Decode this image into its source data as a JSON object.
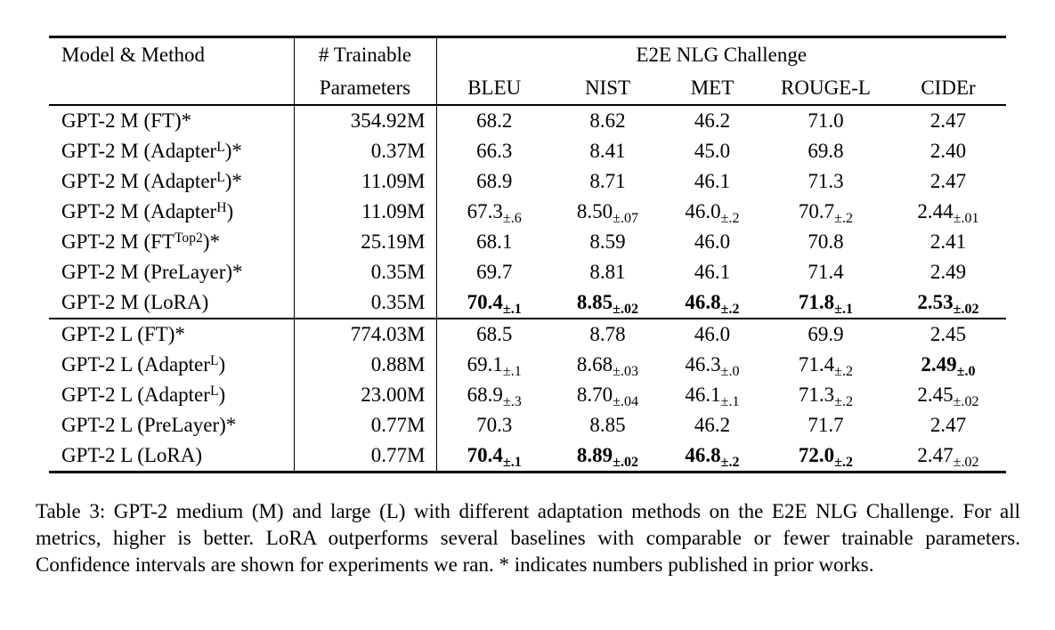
{
  "table": {
    "header": {
      "model_method": "Model & Method",
      "trainable_line1": "# Trainable",
      "trainable_line2": "Parameters",
      "challenge": "E2E NLG Challenge",
      "metrics": [
        "BLEU",
        "NIST",
        "MET",
        "ROUGE-L",
        "CIDEr"
      ]
    },
    "sections": [
      {
        "rows": [
          {
            "method": {
              "pre": "GPT-2 M (FT)*"
            },
            "params": "354.92M",
            "cells": [
              {
                "v": "68.2"
              },
              {
                "v": "8.62"
              },
              {
                "v": "46.2"
              },
              {
                "v": "71.0"
              },
              {
                "v": "2.47"
              }
            ]
          },
          {
            "method": {
              "pre": "GPT-2 M (Adapter",
              "sup": "L",
              "post": ")*"
            },
            "params": "0.37M",
            "cells": [
              {
                "v": "66.3"
              },
              {
                "v": "8.41"
              },
              {
                "v": "45.0"
              },
              {
                "v": "69.8"
              },
              {
                "v": "2.40"
              }
            ]
          },
          {
            "method": {
              "pre": "GPT-2 M (Adapter",
              "sup": "L",
              "post": ")*"
            },
            "params": "11.09M",
            "cells": [
              {
                "v": "68.9"
              },
              {
                "v": "8.71"
              },
              {
                "v": "46.1"
              },
              {
                "v": "71.3"
              },
              {
                "v": "2.47"
              }
            ]
          },
          {
            "method": {
              "pre": "GPT-2 M (Adapter",
              "sup": "H",
              "post": ")"
            },
            "params": "11.09M",
            "cells": [
              {
                "v": "67.3",
                "s": "±.6"
              },
              {
                "v": "8.50",
                "s": "±.07"
              },
              {
                "v": "46.0",
                "s": "±.2"
              },
              {
                "v": "70.7",
                "s": "±.2"
              },
              {
                "v": "2.44",
                "s": "±.01"
              }
            ]
          },
          {
            "method": {
              "pre": "GPT-2 M (FT",
              "sup": "Top2",
              "post": ")*"
            },
            "params": "25.19M",
            "cells": [
              {
                "v": "68.1"
              },
              {
                "v": "8.59"
              },
              {
                "v": "46.0"
              },
              {
                "v": "70.8"
              },
              {
                "v": "2.41"
              }
            ]
          },
          {
            "method": {
              "pre": "GPT-2 M (PreLayer)*"
            },
            "params": "0.35M",
            "cells": [
              {
                "v": "69.7"
              },
              {
                "v": "8.81"
              },
              {
                "v": "46.1"
              },
              {
                "v": "71.4"
              },
              {
                "v": "2.49"
              }
            ]
          },
          {
            "method": {
              "pre": "GPT-2 M (LoRA)"
            },
            "params": "0.35M",
            "cells": [
              {
                "v": "70.4",
                "s": "±.1",
                "b": true
              },
              {
                "v": "8.85",
                "s": "±.02",
                "b": true
              },
              {
                "v": "46.8",
                "s": "±.2",
                "b": true
              },
              {
                "v": "71.8",
                "s": "±.1",
                "b": true
              },
              {
                "v": "2.53",
                "s": "±.02",
                "b": true
              }
            ]
          }
        ]
      },
      {
        "rows": [
          {
            "method": {
              "pre": "GPT-2 L (FT)*"
            },
            "params": "774.03M",
            "cells": [
              {
                "v": "68.5"
              },
              {
                "v": "8.78"
              },
              {
                "v": "46.0"
              },
              {
                "v": "69.9"
              },
              {
                "v": "2.45"
              }
            ]
          },
          {
            "method": {
              "pre": "GPT-2 L (Adapter",
              "sup": "L",
              "post": ")"
            },
            "params": "0.88M",
            "cells": [
              {
                "v": "69.1",
                "s": "±.1"
              },
              {
                "v": "8.68",
                "s": "±.03"
              },
              {
                "v": "46.3",
                "s": "±.0"
              },
              {
                "v": "71.4",
                "s": "±.2"
              },
              {
                "v": "2.49",
                "s": "±.0",
                "b": true
              }
            ]
          },
          {
            "method": {
              "pre": "GPT-2 L (Adapter",
              "sup": "L",
              "post": ")"
            },
            "params": "23.00M",
            "cells": [
              {
                "v": "68.9",
                "s": "±.3"
              },
              {
                "v": "8.70",
                "s": "±.04"
              },
              {
                "v": "46.1",
                "s": "±.1"
              },
              {
                "v": "71.3",
                "s": "±.2"
              },
              {
                "v": "2.45",
                "s": "±.02"
              }
            ]
          },
          {
            "method": {
              "pre": "GPT-2 L (PreLayer)*"
            },
            "params": "0.77M",
            "cells": [
              {
                "v": "70.3"
              },
              {
                "v": "8.85"
              },
              {
                "v": "46.2"
              },
              {
                "v": "71.7"
              },
              {
                "v": "2.47"
              }
            ]
          },
          {
            "method": {
              "pre": "GPT-2 L (LoRA)"
            },
            "params": "0.77M",
            "cells": [
              {
                "v": "70.4",
                "s": "±.1",
                "b": true
              },
              {
                "v": "8.89",
                "s": "±.02",
                "b": true
              },
              {
                "v": "46.8",
                "s": "±.2",
                "b": true
              },
              {
                "v": "72.0",
                "s": "±.2",
                "b": true
              },
              {
                "v": "2.47",
                "s": "±.02"
              }
            ]
          }
        ]
      }
    ]
  },
  "caption": {
    "label": "Table 3:",
    "text": "GPT-2 medium (M) and large (L) with different adaptation methods on the E2E NLG Challenge. For all metrics, higher is better. LoRA outperforms several baselines with comparable or fewer trainable parameters. Confidence intervals are shown for experiments we ran. * indicates numbers published in prior works."
  }
}
